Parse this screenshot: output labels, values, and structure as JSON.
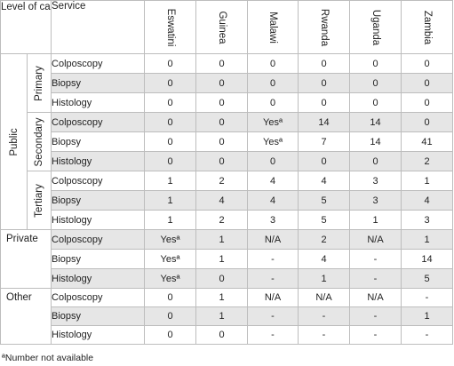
{
  "header": {
    "level_of_care": "Level of care",
    "service": "Service",
    "countries": [
      "Eswatini",
      "Guinea",
      "Malawi",
      "Rwanda",
      "Uganda",
      "Zambia"
    ]
  },
  "sectors": {
    "public": "Public",
    "private": "Private",
    "other": "Other"
  },
  "levels": {
    "primary": "Primary",
    "secondary": "Secondary",
    "tertiary": "Tertiary"
  },
  "rows": [
    {
      "service": "Colposcopy",
      "values": [
        "0",
        "0",
        "0",
        "0",
        "0",
        "0"
      ]
    },
    {
      "service": "Biopsy",
      "values": [
        "0",
        "0",
        "0",
        "0",
        "0",
        "0"
      ]
    },
    {
      "service": "Histology",
      "values": [
        "0",
        "0",
        "0",
        "0",
        "0",
        "0"
      ]
    },
    {
      "service": "Colposcopy",
      "values": [
        "0",
        "0",
        "Yesª",
        "14",
        "14",
        "0"
      ]
    },
    {
      "service": "Biopsy",
      "values": [
        "0",
        "0",
        "Yesª",
        "7",
        "14",
        "41"
      ]
    },
    {
      "service": "Histology",
      "values": [
        "0",
        "0",
        "0",
        "0",
        "0",
        "2"
      ]
    },
    {
      "service": "Colposcopy",
      "values": [
        "1",
        "2",
        "4",
        "4",
        "3",
        "1"
      ]
    },
    {
      "service": "Biopsy",
      "values": [
        "1",
        "4",
        "4",
        "5",
        "3",
        "4"
      ]
    },
    {
      "service": "Histology",
      "values": [
        "1",
        "2",
        "3",
        "5",
        "1",
        "3"
      ]
    },
    {
      "service": "Colposcopy",
      "values": [
        "Yesª",
        "1",
        "N/A",
        "2",
        "N/A",
        "1"
      ]
    },
    {
      "service": "Biopsy",
      "values": [
        "Yesª",
        "1",
        "-",
        "4",
        "-",
        "14"
      ]
    },
    {
      "service": "Histology",
      "values": [
        "Yesª",
        "0",
        "-",
        "1",
        "-",
        "5"
      ]
    },
    {
      "service": "Colposcopy",
      "values": [
        "0",
        "1",
        "N/A",
        "N/A",
        "N/A",
        "-"
      ]
    },
    {
      "service": "Biopsy",
      "values": [
        "0",
        "1",
        "-",
        "-",
        "-",
        "1"
      ]
    },
    {
      "service": "Histology",
      "values": [
        "0",
        "0",
        "-",
        "-",
        "-",
        "-"
      ]
    }
  ],
  "footnote": "ªNumber not available"
}
